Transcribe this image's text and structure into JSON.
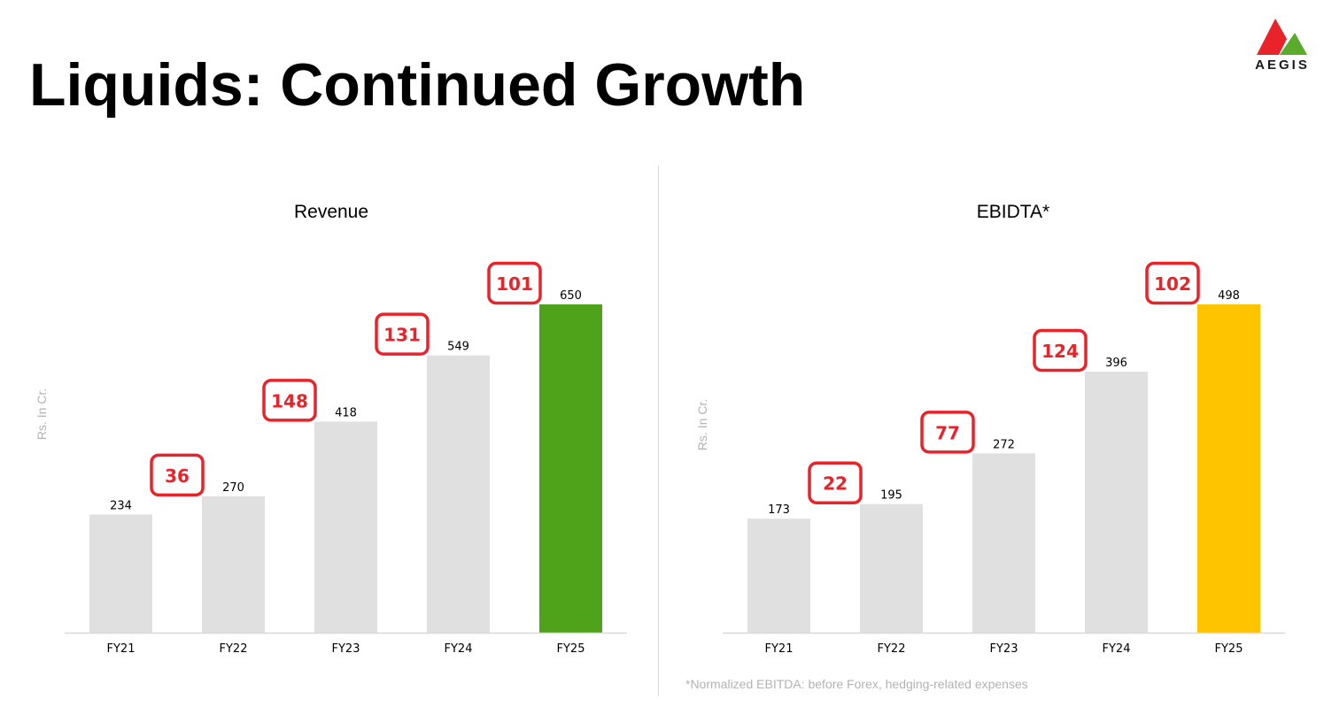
{
  "page": {
    "title": "Liquids: Continued Growth",
    "logo_text": "AEGIS",
    "footnote": "*Normalized EBITDA: before Forex, hedging-related expenses"
  },
  "colors": {
    "bar_default": "#e0e0e0",
    "revenue_highlight": "#4ea31a",
    "ebitda_highlight": "#ffc400",
    "delta_box": "#e8232a",
    "logo_red": "#e8232a",
    "logo_green": "#5aaa2c"
  },
  "chart_data": [
    {
      "type": "bar",
      "title": "Revenue",
      "ylabel": "Rs. In Cr.",
      "categories": [
        "FY21",
        "FY22",
        "FY23",
        "FY24",
        "FY25"
      ],
      "values": [
        234,
        270,
        418,
        549,
        650
      ],
      "value_labels": [
        "234",
        "270",
        "418",
        "549",
        "650"
      ],
      "highlight_index": 4,
      "increments": [
        "36",
        "148",
        "131",
        "101"
      ],
      "ylim": [
        0,
        650
      ]
    },
    {
      "type": "bar",
      "title": "EBIDTA*",
      "ylabel": "Rs. In Cr.",
      "categories": [
        "FY21",
        "FY22",
        "FY23",
        "FY24",
        "FY25"
      ],
      "values": [
        173,
        195,
        272,
        396,
        498
      ],
      "value_labels": [
        "173",
        "195",
        "272",
        "396",
        "498"
      ],
      "highlight_index": 4,
      "increments": [
        "22",
        "77",
        "124",
        "102"
      ],
      "ylim": [
        0,
        498
      ]
    }
  ]
}
